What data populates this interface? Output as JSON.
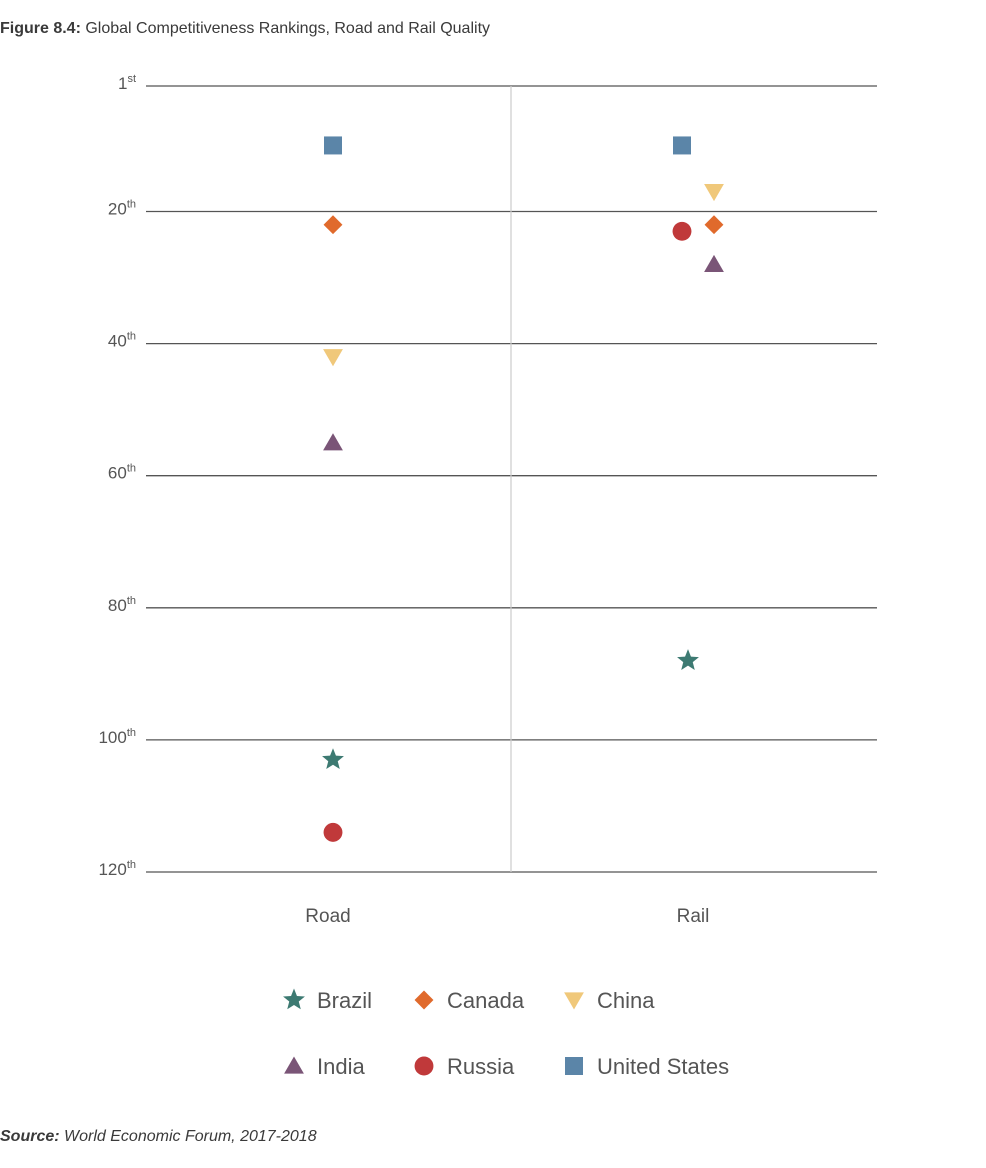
{
  "header": {
    "figure_label": "Figure 8.4:",
    "title": "Global Competitiveness Rankings, Road and Rail Quality"
  },
  "footer": {
    "source_label": "Source:",
    "source_text": "World Economic Forum, 2017-2018"
  },
  "chart_data": {
    "type": "scatter",
    "title": "Global Competitiveness Rankings, Road and Rail Quality",
    "categories": [
      "Road",
      "Rail"
    ],
    "y_axis": {
      "inverted": true,
      "ylim": [
        1,
        120
      ],
      "ticks": [
        {
          "value": 1,
          "num": "1",
          "suffix": "st"
        },
        {
          "value": 20,
          "num": "20",
          "suffix": "th"
        },
        {
          "value": 40,
          "num": "40",
          "suffix": "th"
        },
        {
          "value": 60,
          "num": "60",
          "suffix": "th"
        },
        {
          "value": 80,
          "num": "80",
          "suffix": "th"
        },
        {
          "value": 100,
          "num": "100",
          "suffix": "th"
        },
        {
          "value": 120,
          "num": "120",
          "suffix": "th"
        }
      ],
      "grid": true
    },
    "legend_position": "bottom",
    "series": [
      {
        "name": "Brazil",
        "marker": "star",
        "color": "#3d7a72",
        "values": [
          103,
          88
        ]
      },
      {
        "name": "Canada",
        "marker": "diamond",
        "color": "#e06a2c",
        "values": [
          22,
          22
        ]
      },
      {
        "name": "China",
        "marker": "triangle-down",
        "color": "#f0c87a",
        "values": [
          42,
          17
        ]
      },
      {
        "name": "India",
        "marker": "triangle-up",
        "color": "#7a5577",
        "values": [
          55,
          28
        ]
      },
      {
        "name": "Russia",
        "marker": "circle",
        "color": "#c0393a",
        "values": [
          114,
          23
        ]
      },
      {
        "name": "United States",
        "marker": "square",
        "color": "#5b85a8",
        "values": [
          10,
          10
        ]
      }
    ]
  }
}
